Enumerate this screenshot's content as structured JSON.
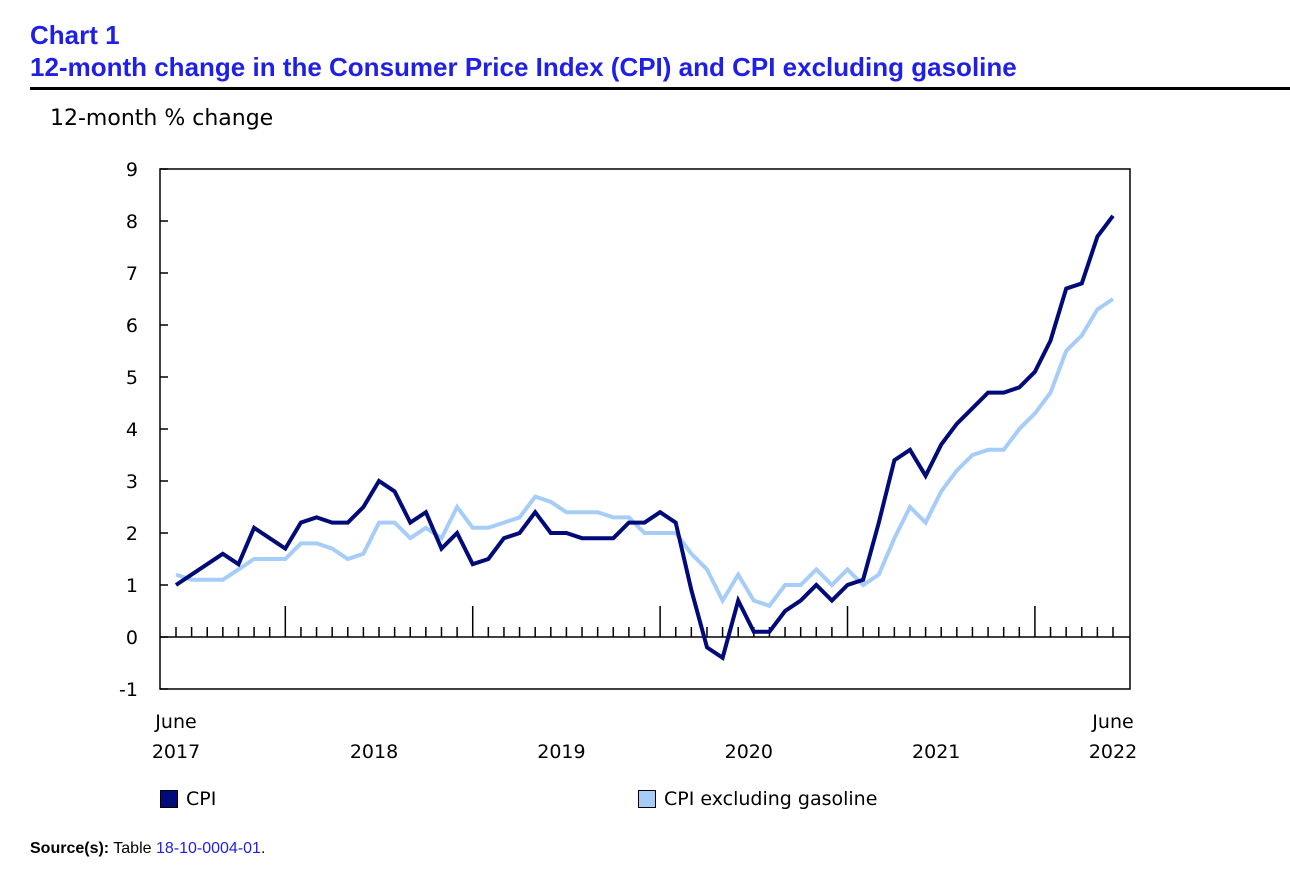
{
  "header": {
    "chart_number": "Chart 1",
    "title": "12-month change in the Consumer Price Index (CPI) and CPI excluding gasoline"
  },
  "source": {
    "label": "Source(s):",
    "prefix": "Table",
    "link": "18-10-0004-01",
    "suffix": "."
  },
  "colors": {
    "cpi": "#000a78",
    "cpi_ex_gas": "#a6cdf8",
    "title": "#1f1fe6"
  },
  "chart_data": {
    "type": "line",
    "title": "12-month change in the Consumer Price Index (CPI) and CPI excluding gasoline",
    "ylabel": "12-month % change",
    "xlabel": "",
    "ylim": [
      -1,
      9
    ],
    "yticks": [
      "9",
      "8",
      "7",
      "6",
      "5",
      "4",
      "3",
      "2",
      "1",
      "0",
      "-1"
    ],
    "x_start": "June 2017",
    "x_end": "June 2022",
    "xtick_labels": [
      {
        "line1": "June",
        "line2": "2017",
        "month_index": 0
      },
      {
        "line1": "",
        "line2": "2018",
        "month_index": 13
      },
      {
        "line1": "",
        "line2": "2019",
        "month_index": 25
      },
      {
        "line1": "",
        "line2": "2020",
        "month_index": 37
      },
      {
        "line1": "",
        "line2": "2021",
        "month_index": 49
      },
      {
        "line1": "June",
        "line2": "2022",
        "month_index": 60
      }
    ],
    "legend_position": "bottom",
    "series": [
      {
        "name": "CPI",
        "values": [
          1.0,
          1.2,
          1.4,
          1.6,
          1.4,
          2.1,
          1.9,
          1.7,
          2.2,
          2.3,
          2.2,
          2.2,
          2.5,
          3.0,
          2.8,
          2.2,
          2.4,
          1.7,
          2.0,
          1.4,
          1.5,
          1.9,
          2.0,
          2.4,
          2.0,
          2.0,
          1.9,
          1.9,
          1.9,
          2.2,
          2.2,
          2.4,
          2.2,
          0.9,
          -0.2,
          -0.4,
          0.7,
          0.1,
          0.1,
          0.5,
          0.7,
          1.0,
          0.7,
          1.0,
          1.1,
          2.2,
          3.4,
          3.6,
          3.1,
          3.7,
          4.1,
          4.4,
          4.7,
          4.7,
          4.8,
          5.1,
          5.7,
          6.7,
          6.8,
          7.7,
          8.1
        ]
      },
      {
        "name": "CPI excluding gasoline",
        "values": [
          1.2,
          1.1,
          1.1,
          1.1,
          1.3,
          1.5,
          1.5,
          1.5,
          1.8,
          1.8,
          1.7,
          1.5,
          1.6,
          2.2,
          2.2,
          1.9,
          2.1,
          1.9,
          2.5,
          2.1,
          2.1,
          2.2,
          2.3,
          2.7,
          2.6,
          2.4,
          2.4,
          2.4,
          2.3,
          2.3,
          2.0,
          2.0,
          2.0,
          1.6,
          1.3,
          0.7,
          1.2,
          0.7,
          0.6,
          1.0,
          1.0,
          1.3,
          1.0,
          1.3,
          1.0,
          1.2,
          1.9,
          2.5,
          2.2,
          2.8,
          3.2,
          3.5,
          3.6,
          3.6,
          4.0,
          4.3,
          4.7,
          5.5,
          5.8,
          6.3,
          6.5
        ]
      }
    ]
  }
}
